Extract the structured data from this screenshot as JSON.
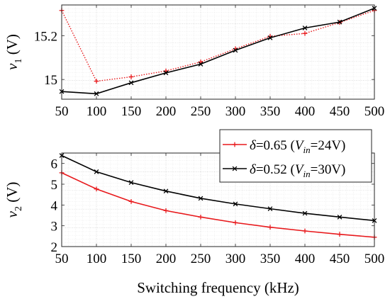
{
  "chart_data": [
    {
      "type": "line",
      "xlabel": "",
      "ylabel": "v",
      "ylabel_sub": "1",
      "ylabel_unit": " (V)",
      "x": [
        50,
        100,
        150,
        200,
        250,
        300,
        350,
        400,
        450,
        500
      ],
      "xlim": [
        50,
        500
      ],
      "ylim": [
        14.91,
        15.34
      ],
      "xticks": [
        "50",
        "100",
        "150",
        "200",
        "250",
        "300",
        "350",
        "400",
        "450",
        "500"
      ],
      "yticks": [
        {
          "value": 15,
          "label": "15"
        },
        {
          "value": 15.2,
          "label": "15.2"
        }
      ],
      "grid": true,
      "series": [
        {
          "name": "δ=0.65 (Vin=24V)",
          "color": "#e8191c",
          "marker": "plus",
          "dash": "dotted",
          "values": [
            15.315,
            14.992,
            15.012,
            15.039,
            15.08,
            15.14,
            15.197,
            15.21,
            15.26,
            15.315
          ]
        },
        {
          "name": "δ=0.52 (Vin=30V)",
          "color": "#000000",
          "marker": "x",
          "dash": "solid",
          "values": [
            14.945,
            14.935,
            14.985,
            15.03,
            15.07,
            15.133,
            15.19,
            15.235,
            15.262,
            15.325
          ]
        }
      ]
    },
    {
      "type": "line",
      "xlabel": "Switching frequency (kHz)",
      "ylabel": "v",
      "ylabel_sub": "2",
      "ylabel_unit": " (V)",
      "x": [
        50,
        100,
        150,
        200,
        250,
        300,
        350,
        400,
        450,
        500
      ],
      "xlim": [
        50,
        500
      ],
      "ylim": [
        2,
        6.5
      ],
      "xticks": [
        "50",
        "100",
        "150",
        "200",
        "250",
        "300",
        "350",
        "400",
        "450",
        "500"
      ],
      "yticks": [
        {
          "value": 2,
          "label": "2"
        },
        {
          "value": 3,
          "label": "3"
        },
        {
          "value": 4,
          "label": "4"
        },
        {
          "value": 5,
          "label": "5"
        },
        {
          "value": 6,
          "label": "6"
        }
      ],
      "grid": true,
      "legend": {
        "placement": "top-right",
        "entries": [
          {
            "delta": "δ",
            "value": "=0.65 (",
            "var": "V",
            "sub": "in",
            "tail": "=24V)",
            "color": "#e8191c",
            "marker": "plus"
          },
          {
            "delta": "δ",
            "value": "=0.52 (",
            "var": "V",
            "sub": "in",
            "tail": "=30V)",
            "color": "#000000",
            "marker": "x"
          }
        ]
      },
      "series": [
        {
          "name": "δ=0.65 (Vin=24V)",
          "color": "#e8191c",
          "marker": "plus",
          "dash": "solid",
          "values": [
            5.55,
            4.77,
            4.17,
            3.73,
            3.42,
            3.15,
            2.93,
            2.75,
            2.59,
            2.45
          ]
        },
        {
          "name": "δ=0.52 (Vin=30V)",
          "color": "#000000",
          "marker": "x",
          "dash": "solid",
          "values": [
            6.38,
            5.6,
            5.08,
            4.67,
            4.32,
            4.05,
            3.82,
            3.6,
            3.42,
            3.25
          ]
        }
      ]
    }
  ]
}
